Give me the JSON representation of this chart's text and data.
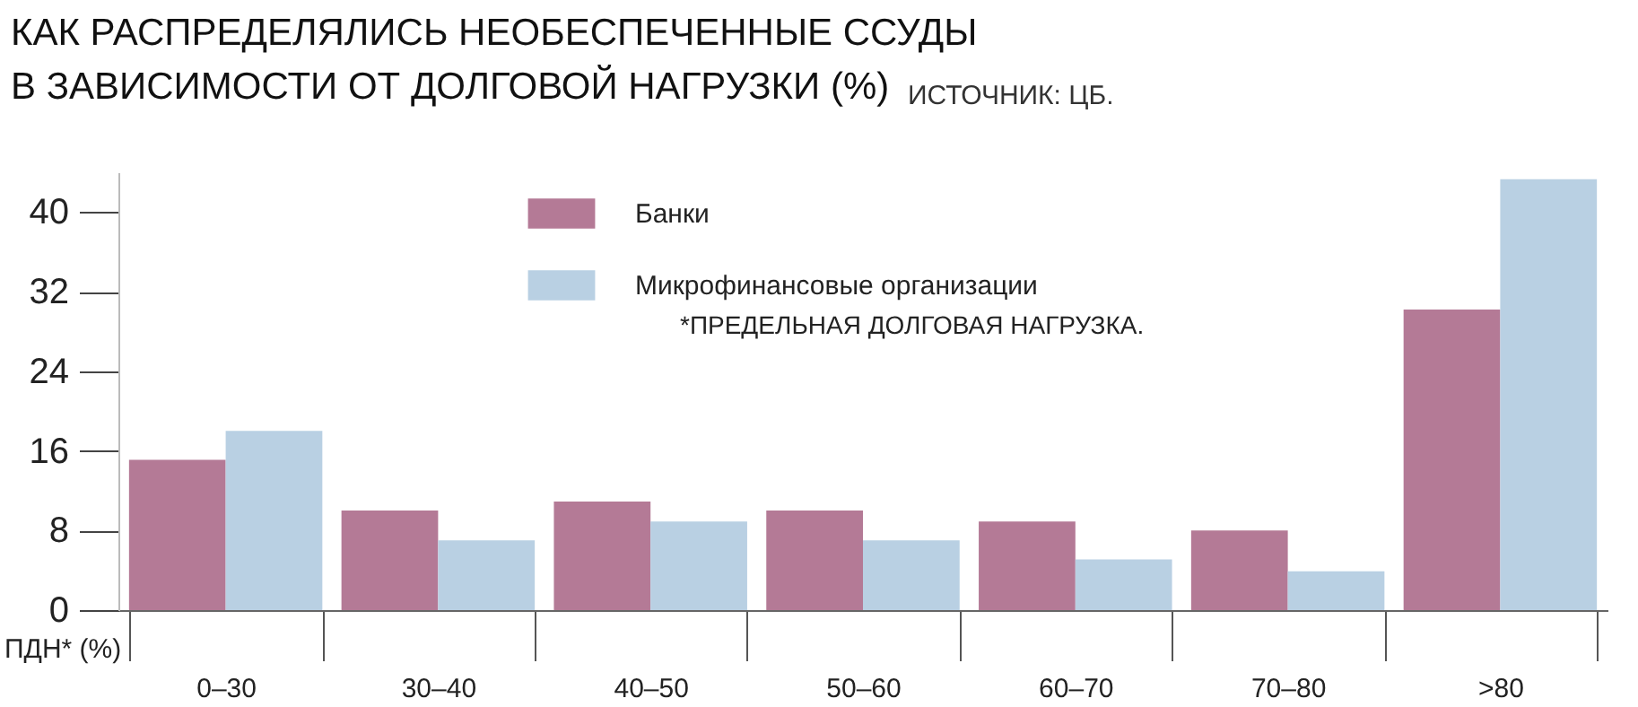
{
  "chart_data": {
    "type": "bar",
    "title": "КАК РАСПРЕДЕЛЯЛИСЬ НЕОБЕСПЕЧЕННЫЕ ССУДЫ\nВ ЗАВИСИМОСТИ ОТ ДОЛГОВОЙ НАГРУЗКИ (%)",
    "subtitle": "ИСТОЧНИК: ЦБ.",
    "xlabel": "ПДН* (%)",
    "annotations": [
      "*ПРЕДЕЛЬНАЯ ДОЛГОВАЯ НАГРУЗКА."
    ],
    "categories": [
      "0–30",
      "30–40",
      "40–50",
      "50–60",
      "60–70",
      "70–80",
      ">80"
    ],
    "series": [
      {
        "name": "Банки",
        "color": "#b47a96",
        "values": [
          15.1,
          10.0,
          10.9,
          10.0,
          8.9,
          8.0,
          30.2
        ]
      },
      {
        "name": "Микрофинансовые организации",
        "color": "#b9d0e3",
        "values": [
          18.0,
          7.0,
          8.9,
          7.0,
          5.1,
          3.9,
          43.3
        ]
      }
    ],
    "ylim": [
      0,
      44
    ],
    "yticks": [
      0,
      8,
      16,
      24,
      32,
      40
    ],
    "grid": false,
    "legend": "top"
  }
}
